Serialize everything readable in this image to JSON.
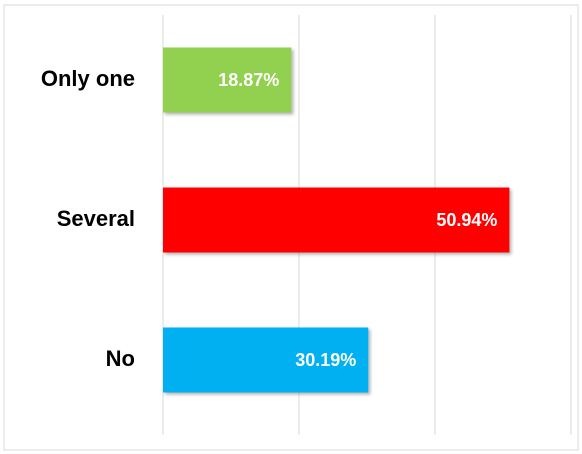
{
  "chart_data": {
    "type": "hbar",
    "categories": [
      "Only one",
      "Several",
      "No"
    ],
    "values": [
      18.87,
      50.94,
      30.19
    ],
    "value_labels": [
      "18.87%",
      "50.94%",
      "30.19%"
    ],
    "colors": [
      "#92d050",
      "#ff0000",
      "#00b0f0"
    ],
    "xlim": [
      0,
      60
    ],
    "xticks": [
      0,
      20,
      40,
      60
    ],
    "grid": true
  }
}
